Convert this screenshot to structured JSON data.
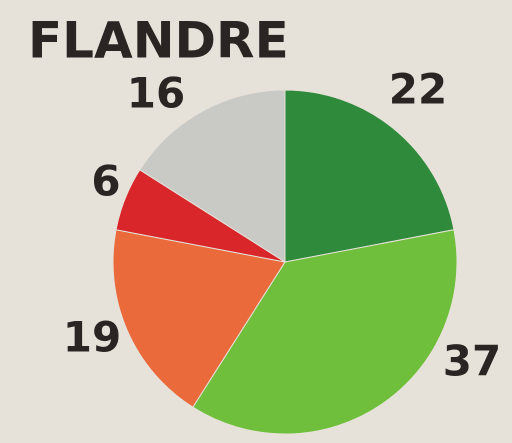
{
  "chart_data": {
    "type": "pie",
    "title": "FLANDRE",
    "values": [
      22,
      37,
      19,
      6,
      16
    ],
    "colors": [
      "#2f8a3b",
      "#6fbf3c",
      "#ea6a3c",
      "#d8262a",
      "#c9c9c6"
    ]
  }
}
